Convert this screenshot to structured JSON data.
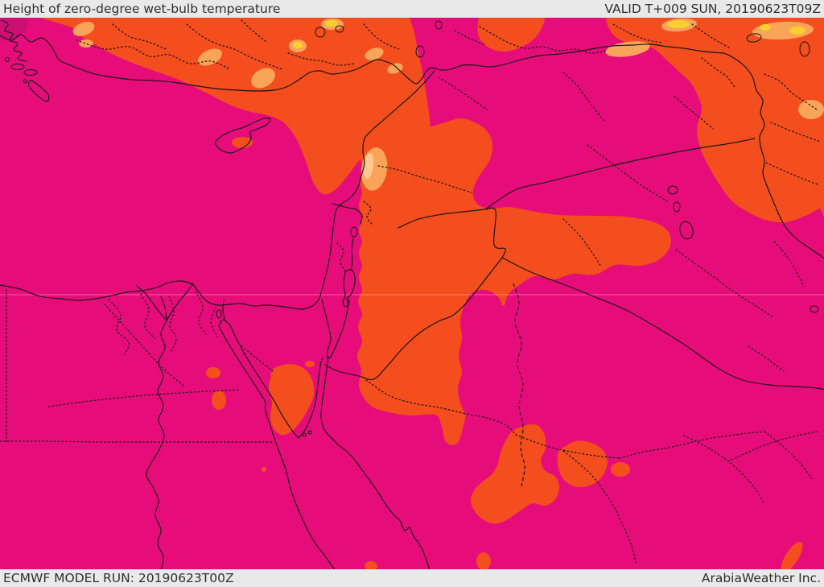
{
  "header": {
    "title": "Height of zero-degree wet-bulb temperature",
    "valid_label": "VALID T+009 SUN, 20190623T09Z"
  },
  "footer": {
    "model_run_label": "ECMWF MODEL RUN: 20190623T00Z",
    "brand_label": "ArabiaWeather Inc."
  },
  "colors": {
    "background_magenta": "#e60d7a",
    "magenta_dark": "#cf0e74",
    "orange": "#f44d1e",
    "peach": "#faa45a",
    "peach_light": "#fcc892",
    "yellow": "#ffcf2d",
    "line_black": "#141414",
    "grid_white": "#ffffff",
    "bar_background": "#e9e9e9",
    "bar_text": "#2f2f2f"
  }
}
